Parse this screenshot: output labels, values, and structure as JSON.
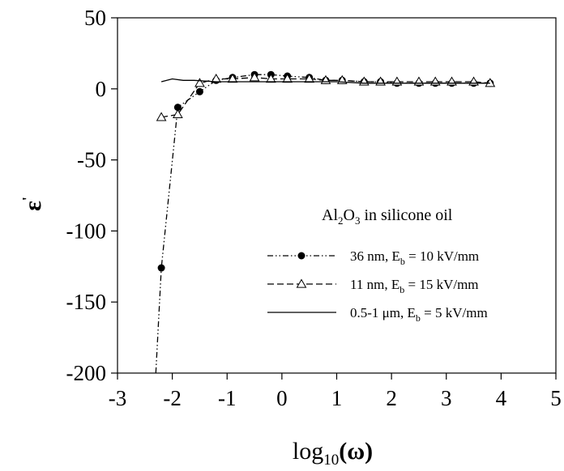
{
  "chart_data": {
    "type": "line",
    "xlabel_base": "log",
    "xlabel_sub": "10",
    "xlabel_arg": "(ω)",
    "ylabel": "ε",
    "ylabel_sup": "'",
    "xlim": [
      -3,
      5
    ],
    "ylim": [
      -200,
      50
    ],
    "xticks": [
      -3,
      -2,
      -1,
      0,
      1,
      2,
      3,
      4,
      5
    ],
    "yticks": [
      -200,
      -150,
      -100,
      -50,
      0,
      50
    ],
    "grid": false,
    "legend_position": "lower-right",
    "legend_title": {
      "pre": "Al",
      "sub1": "2",
      "mid": "O",
      "sub2": "3",
      "post": " in silicone oil"
    },
    "series": [
      {
        "name_pre": "36 nm, E",
        "name_sub": "b",
        "name_post": " = 10 kV/mm",
        "style": "dash-dot-dot",
        "marker": "filled-circle",
        "x": [
          -2.3,
          -2.2,
          -1.9,
          -1.5,
          -1.2,
          -0.9,
          -0.5,
          -0.2,
          0.1,
          0.5,
          0.8,
          1.1,
          1.5,
          1.8,
          2.1,
          2.5,
          2.8,
          3.1,
          3.5,
          3.8
        ],
        "y": [
          -200,
          -126,
          -13,
          -2,
          6,
          8,
          10,
          10,
          9,
          8,
          6,
          6,
          5,
          5,
          4,
          4,
          4,
          4,
          4,
          4
        ],
        "marker_from_index": 1
      },
      {
        "name_pre": "11 nm, E",
        "name_sub": "b",
        "name_post": " = 15 kV/mm",
        "style": "dashed",
        "marker": "open-triangle",
        "x": [
          -2.2,
          -1.9,
          -1.5,
          -1.2,
          -0.9,
          -0.5,
          -0.2,
          0.1,
          0.5,
          0.8,
          1.1,
          1.5,
          1.8,
          2.1,
          2.5,
          2.8,
          3.1,
          3.5,
          3.8
        ],
        "y": [
          -20,
          -18,
          4,
          7,
          7,
          8,
          7,
          7,
          7,
          6,
          6,
          5,
          5,
          5,
          5,
          5,
          5,
          5,
          4
        ],
        "marker_from_index": 0
      },
      {
        "name_pre": "0.5-1 μm, E",
        "name_sub": "b",
        "name_post": "  = 5 kV/mm",
        "style": "solid",
        "marker": "none",
        "x": [
          -2.2,
          -2.0,
          -1.8,
          -1.6,
          -1.2,
          -0.8,
          -0.4,
          0.0,
          0.5,
          1.0,
          1.5,
          2.0,
          2.5,
          3.0,
          3.5,
          3.8
        ],
        "y": [
          5,
          7,
          6,
          6,
          5,
          5,
          5,
          5,
          5,
          5,
          4,
          4,
          4,
          4,
          4,
          4
        ],
        "marker_from_index": 0
      }
    ]
  }
}
